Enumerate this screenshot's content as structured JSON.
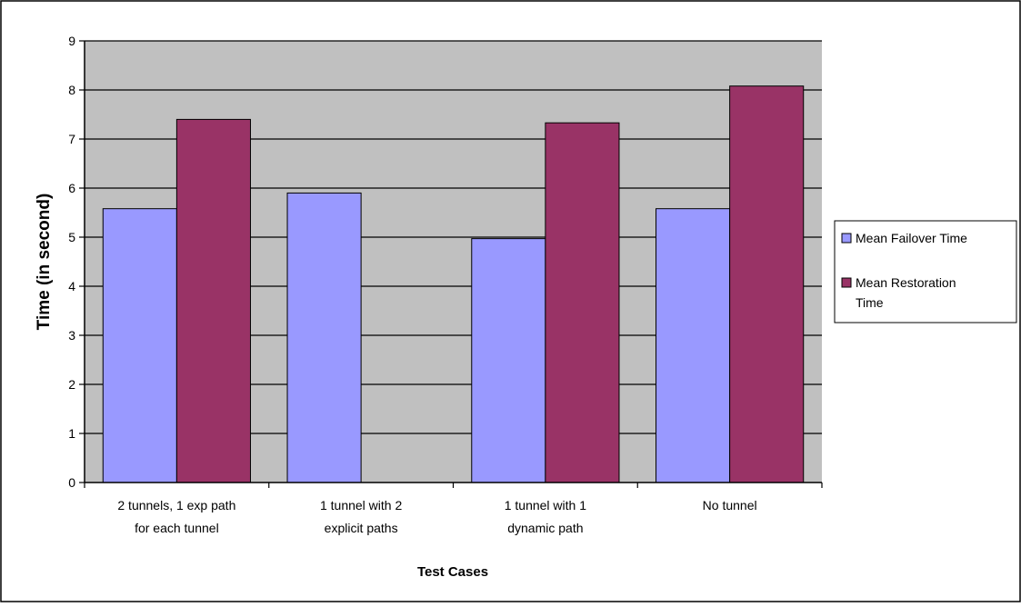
{
  "chart_data": {
    "type": "bar",
    "xlabel": "Test Cases",
    "ylabel": "Time (in second)",
    "ylim": [
      0,
      9
    ],
    "yticks": [
      "0",
      "1",
      "2",
      "3",
      "4",
      "5",
      "6",
      "7",
      "8",
      "9"
    ],
    "grid": true,
    "legend_position": "right",
    "categories": [
      [
        "2 tunnels, 1 exp path",
        "for each tunnel"
      ],
      [
        "1 tunnel with 2",
        "explicit paths"
      ],
      [
        "1 tunnel with 1",
        "dynamic path"
      ],
      [
        "No tunnel"
      ]
    ],
    "series": [
      {
        "name": "Mean Failover Time",
        "legend_lines": [
          "Mean Failover Time"
        ],
        "color": "#9999ff",
        "values": [
          5.58,
          5.9,
          4.97,
          5.58
        ]
      },
      {
        "name": "Mean Restoration Time",
        "legend_lines": [
          "Mean Restoration",
          "Time"
        ],
        "color": "#993366",
        "values": [
          7.4,
          null,
          7.33,
          8.08
        ]
      }
    ]
  }
}
